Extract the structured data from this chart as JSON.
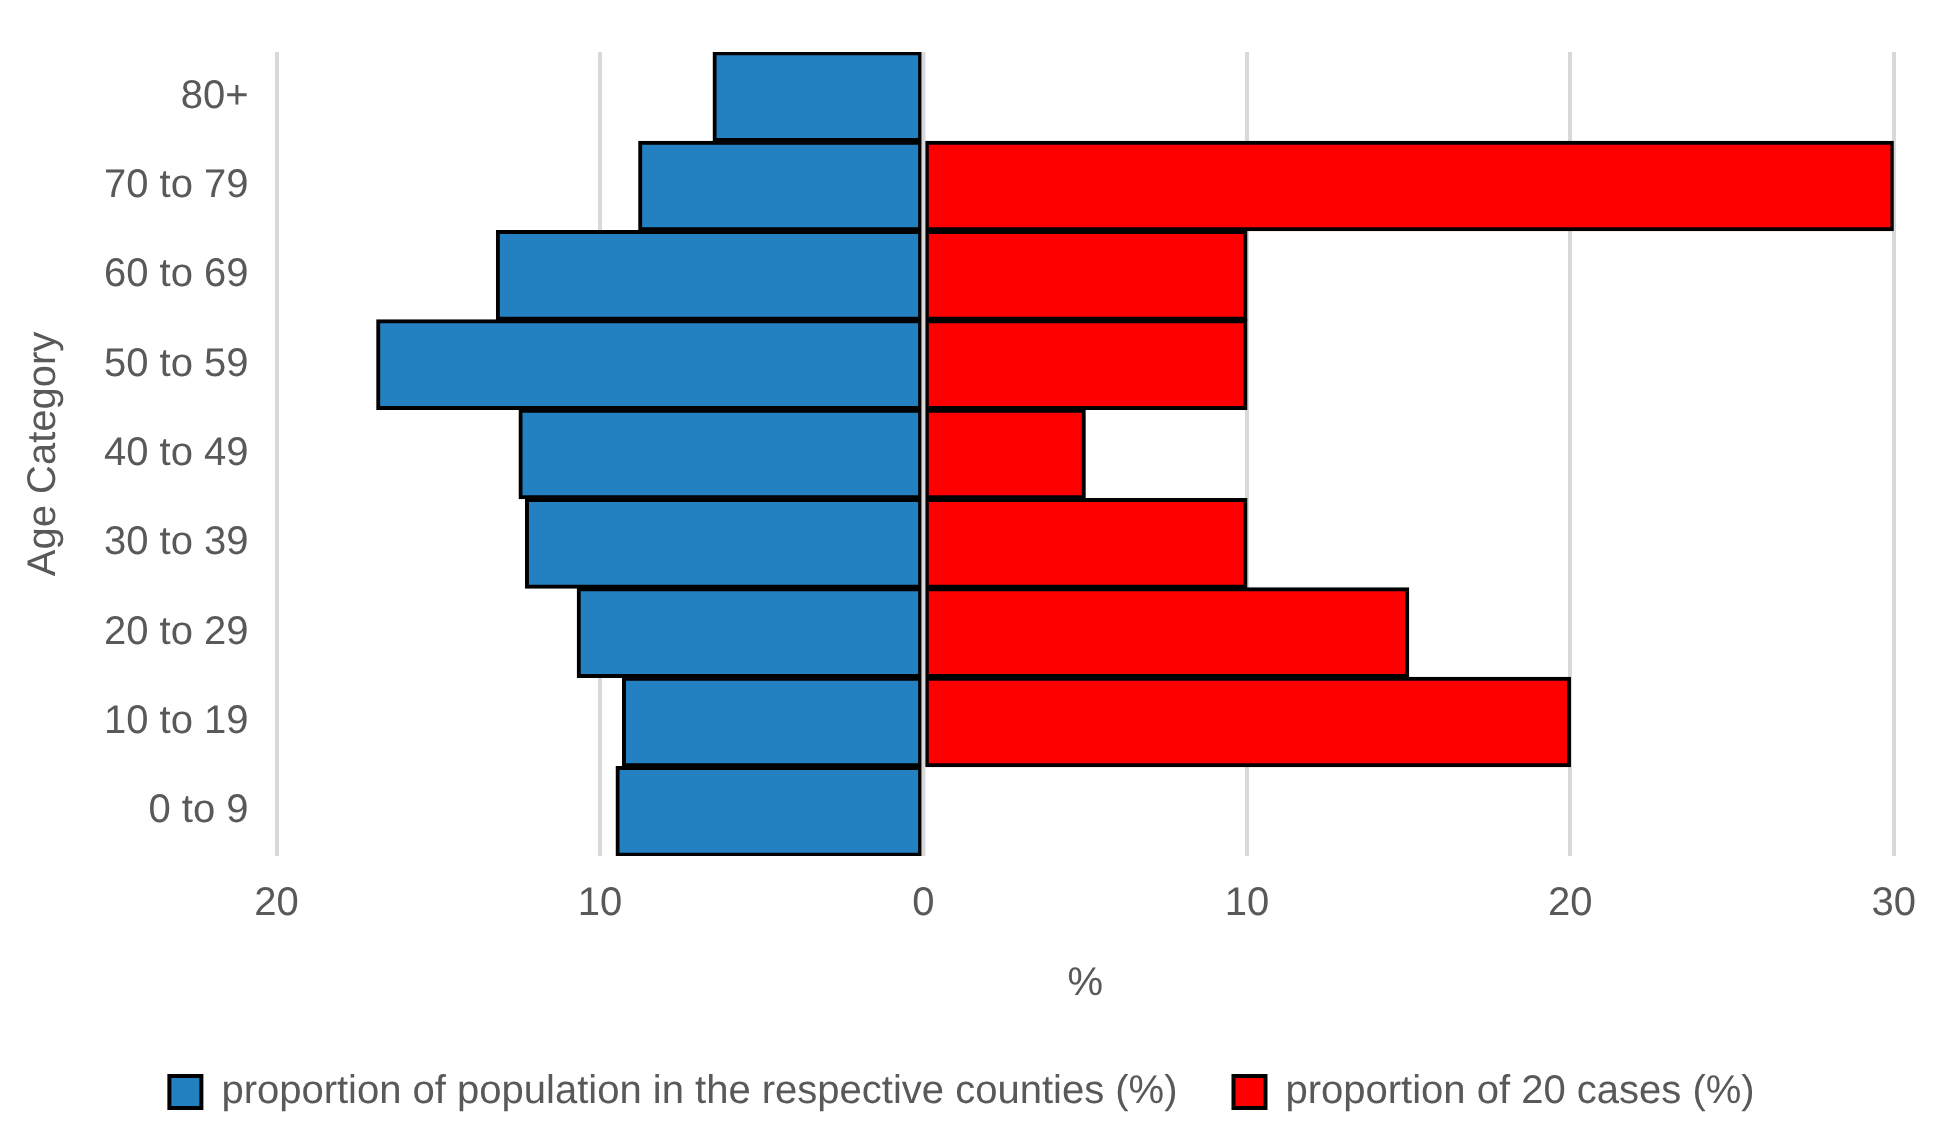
{
  "chart_data": {
    "type": "bar",
    "orientation": "horizontal",
    "stacked": true,
    "xlabel": "%",
    "ylabel": "Age Category",
    "categories": [
      "80+",
      "70 to 79",
      "60 to 69",
      "50 to 59",
      "40 to 49",
      "30 to 39",
      "20 to 29",
      "10 to 19",
      "0 to 9"
    ],
    "series": [
      {
        "name": "proportion of population in the respective counties (%)",
        "color": "#2481c1",
        "values": [
          -6.5,
          -8.8,
          -13.2,
          -16.9,
          -12.5,
          -12.3,
          -10.7,
          -9.3,
          -9.5
        ]
      },
      {
        "name": "proportion of 20 cases (%)",
        "color": "#ff0000",
        "values": [
          null,
          30,
          10,
          10,
          5,
          10,
          15,
          20,
          null
        ]
      }
    ],
    "xlim": [
      -20,
      30
    ],
    "xticks": [
      {
        "value": -20,
        "label": "20"
      },
      {
        "value": -10,
        "label": "10"
      },
      0,
      10,
      20,
      30
    ],
    "grid": "x",
    "legend": "bottom"
  }
}
